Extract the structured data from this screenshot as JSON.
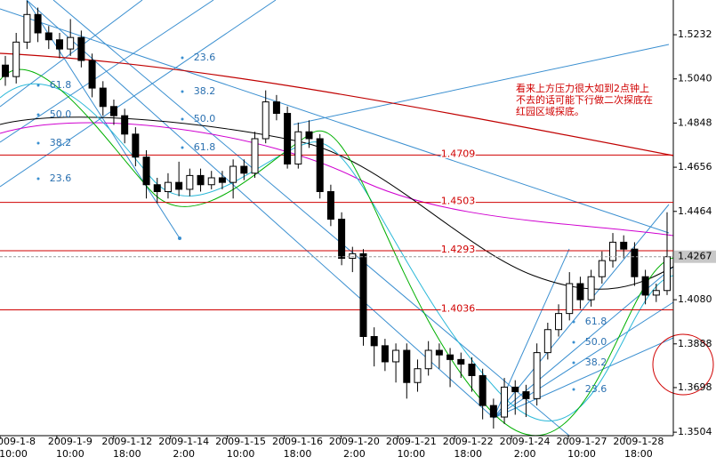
{
  "chart_data": {
    "type": "candlestick",
    "ylim": [
      1.3489,
      1.5383
    ],
    "yticks": [
      1.5232,
      {
        "value": 1.504,
        "label": "1.5040"
      },
      1.4848,
      1.4656,
      1.4464,
      {
        "value": 1.408,
        "label": "1.4080"
      },
      1.3888,
      1.3698,
      1.3504
    ],
    "last_price": 1.4267,
    "fib_levels": [
      1.4709,
      1.4503,
      1.4293,
      1.4036
    ],
    "fan_labels": [
      "23.6",
      "38.2",
      "50.0",
      "61.8"
    ],
    "annotation": [
      "看来上方压力很大如到2点钟上",
      "不去的话可能下行做二次探底在",
      "红园区域探底。"
    ],
    "categories": [
      "2009-1-8",
      "2009-1-9",
      "2009-1-12",
      "2009-1-14",
      "2009-1-15",
      "2009-1-16",
      "2009-1-20",
      "2009-1-21",
      "2009-1-22",
      "2009-1-24",
      "2009-1-27",
      "2009-1-28"
    ],
    "category_times": [
      "10:00",
      "10:00",
      "18:00",
      "2:00",
      "10:00",
      "18:00",
      "2:00",
      "10:00",
      "18:00",
      "2:00",
      "10:00",
      "18:00"
    ],
    "open": [
      1.51,
      1.505,
      1.52,
      1.532,
      1.524,
      1.521,
      1.517,
      1.522,
      1.512,
      1.5,
      1.492,
      1.488,
      1.48,
      1.47,
      1.458,
      1.455,
      1.459,
      1.456,
      1.462,
      1.458,
      1.461,
      1.459,
      1.466,
      1.463,
      1.478,
      1.494,
      1.489,
      1.467,
      1.481,
      1.478,
      1.455,
      1.443,
      1.426,
      1.428,
      1.392,
      1.388,
      1.381,
      1.386,
      1.372,
      1.378,
      1.386,
      1.384,
      1.382,
      1.38,
      1.375,
      1.362,
      1.357,
      1.37,
      1.368,
      1.365,
      1.385,
      1.395,
      1.402,
      1.415,
      1.408,
      1.418,
      1.425,
      1.433,
      1.43,
      1.418,
      1.41,
      1.412
    ],
    "high": [
      1.514,
      1.524,
      1.538,
      1.535,
      1.527,
      1.524,
      1.53,
      1.525,
      1.515,
      1.503,
      1.495,
      1.491,
      1.483,
      1.473,
      1.461,
      1.463,
      1.468,
      1.465,
      1.465,
      1.464,
      1.464,
      1.469,
      1.469,
      1.481,
      1.499,
      1.497,
      1.492,
      1.485,
      1.486,
      1.48,
      1.458,
      1.446,
      1.431,
      1.43,
      1.396,
      1.391,
      1.389,
      1.389,
      1.382,
      1.39,
      1.389,
      1.387,
      1.385,
      1.383,
      1.378,
      1.365,
      1.374,
      1.373,
      1.371,
      1.389,
      1.398,
      1.406,
      1.42,
      1.418,
      1.421,
      1.429,
      1.437,
      1.436,
      1.433,
      1.421,
      1.415,
      1.446
    ],
    "low": [
      1.501,
      1.502,
      1.517,
      1.52,
      1.517,
      1.513,
      1.514,
      1.509,
      1.496,
      1.488,
      1.484,
      1.476,
      1.466,
      1.452,
      1.45,
      1.452,
      1.453,
      1.453,
      1.455,
      1.456,
      1.456,
      1.452,
      1.46,
      1.461,
      1.476,
      1.486,
      1.465,
      1.465,
      1.474,
      1.452,
      1.44,
      1.423,
      1.42,
      1.388,
      1.379,
      1.377,
      1.372,
      1.365,
      1.368,
      1.375,
      1.378,
      1.37,
      1.374,
      1.368,
      1.356,
      1.352,
      1.354,
      1.358,
      1.357,
      1.362,
      1.382,
      1.392,
      1.399,
      1.404,
      1.405,
      1.415,
      1.422,
      1.426,
      1.414,
      1.406,
      1.407,
      1.41
    ],
    "close": [
      1.505,
      1.52,
      1.532,
      1.524,
      1.521,
      1.517,
      1.522,
      1.512,
      1.5,
      1.492,
      1.488,
      1.48,
      1.47,
      1.458,
      1.455,
      1.459,
      1.456,
      1.462,
      1.458,
      1.461,
      1.459,
      1.466,
      1.463,
      1.478,
      1.494,
      1.489,
      1.467,
      1.481,
      1.478,
      1.455,
      1.443,
      1.426,
      1.428,
      1.392,
      1.388,
      1.381,
      1.386,
      1.372,
      1.378,
      1.386,
      1.384,
      1.382,
      1.38,
      1.375,
      1.362,
      1.357,
      1.37,
      1.368,
      1.365,
      1.385,
      1.395,
      1.402,
      1.415,
      1.408,
      1.418,
      1.425,
      1.433,
      1.43,
      1.418,
      1.41,
      1.412,
      1.4267
    ]
  }
}
